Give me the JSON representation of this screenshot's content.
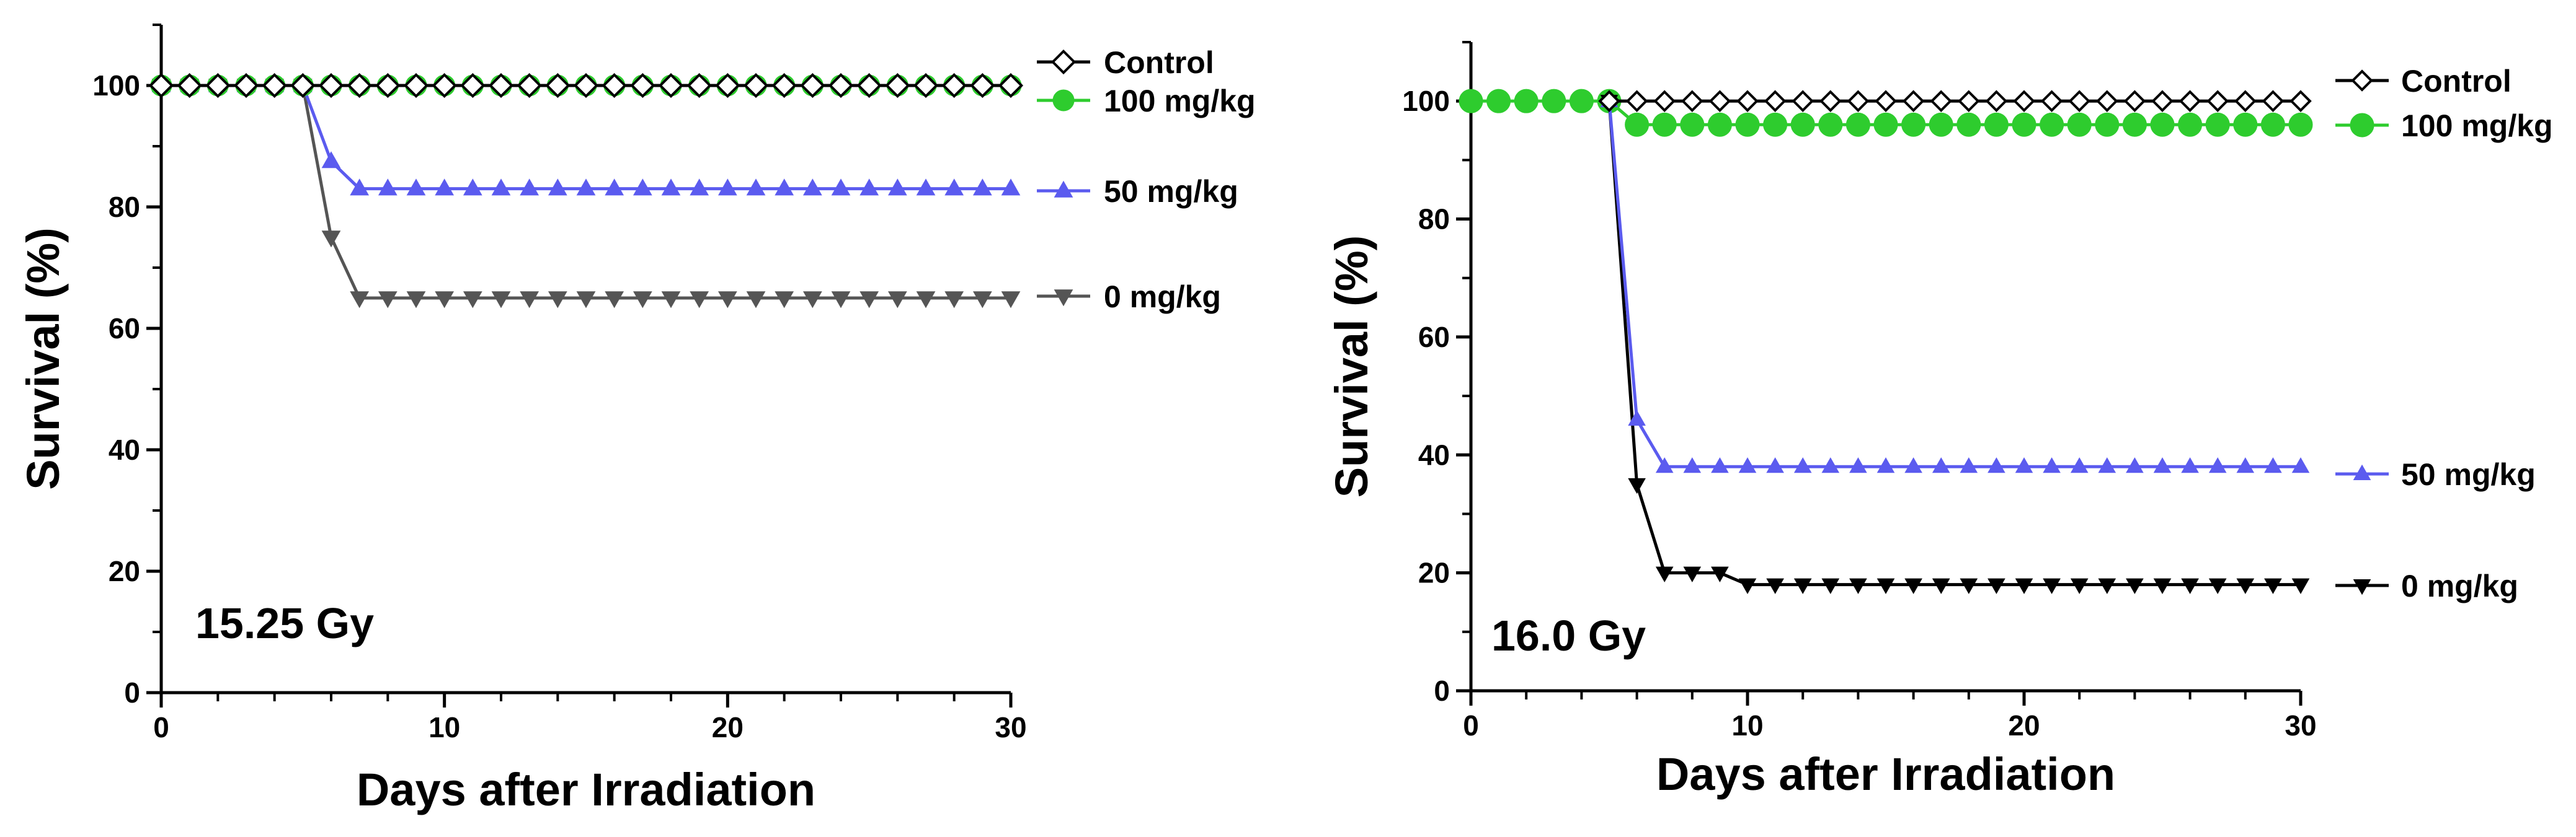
{
  "chart_data": [
    {
      "type": "line",
      "xlabel": "Days after Irradiation",
      "ylabel": "Survival (%)",
      "xlim": [
        0,
        30
      ],
      "ylim": [
        0,
        110
      ],
      "xticks": [
        0,
        10,
        20,
        30
      ],
      "yticks": [
        0,
        20,
        40,
        60,
        80,
        100
      ],
      "annotation": "15.25 Gy",
      "grid": false,
      "legend_position": "right",
      "series": [
        {
          "name": "Control",
          "marker": "diamond-open",
          "color": "#000000",
          "x": [
            0,
            1,
            2,
            3,
            4,
            5,
            6,
            7,
            8,
            9,
            10,
            11,
            12,
            13,
            14,
            15,
            16,
            17,
            18,
            19,
            20,
            21,
            22,
            23,
            24,
            25,
            26,
            27,
            28,
            29,
            30
          ],
          "y": [
            100,
            100,
            100,
            100,
            100,
            100,
            100,
            100,
            100,
            100,
            100,
            100,
            100,
            100,
            100,
            100,
            100,
            100,
            100,
            100,
            100,
            100,
            100,
            100,
            100,
            100,
            100,
            100,
            100,
            100,
            100
          ]
        },
        {
          "name": "100 mg/kg",
          "marker": "circle",
          "color": "#2ecc2e",
          "x": [
            0,
            1,
            2,
            3,
            4,
            5,
            6,
            7,
            8,
            9,
            10,
            11,
            12,
            13,
            14,
            15,
            16,
            17,
            18,
            19,
            20,
            21,
            22,
            23,
            24,
            25,
            26,
            27,
            28,
            29,
            30
          ],
          "y": [
            100,
            100,
            100,
            100,
            100,
            100,
            100,
            100,
            100,
            100,
            100,
            100,
            100,
            100,
            100,
            100,
            100,
            100,
            100,
            100,
            100,
            100,
            100,
            100,
            100,
            100,
            100,
            100,
            100,
            100,
            100
          ]
        },
        {
          "name": "50 mg/kg",
          "marker": "triangle-up",
          "color": "#5b5bef",
          "x": [
            0,
            1,
            2,
            3,
            4,
            5,
            6,
            7,
            8,
            9,
            10,
            11,
            12,
            13,
            14,
            15,
            16,
            17,
            18,
            19,
            20,
            21,
            22,
            23,
            24,
            25,
            26,
            27,
            28,
            29,
            30
          ],
          "y": [
            100,
            100,
            100,
            100,
            100,
            100,
            87.5,
            83,
            83,
            83,
            83,
            83,
            83,
            83,
            83,
            83,
            83,
            83,
            83,
            83,
            83,
            83,
            83,
            83,
            83,
            83,
            83,
            83,
            83,
            83,
            83
          ]
        },
        {
          "name": "0 mg/kg",
          "marker": "triangle-down",
          "color": "#555555",
          "x": [
            0,
            1,
            2,
            3,
            4,
            5,
            6,
            7,
            8,
            9,
            10,
            11,
            12,
            13,
            14,
            15,
            16,
            17,
            18,
            19,
            20,
            21,
            22,
            23,
            24,
            25,
            26,
            27,
            28,
            29,
            30
          ],
          "y": [
            100,
            100,
            100,
            100,
            100,
            100,
            75,
            65,
            65,
            65,
            65,
            65,
            65,
            65,
            65,
            65,
            65,
            65,
            65,
            65,
            65,
            65,
            65,
            65,
            65,
            65,
            65,
            65,
            65,
            65,
            65
          ]
        }
      ]
    },
    {
      "type": "line",
      "xlabel": "Days after Irradiation",
      "ylabel": "Survival (%)",
      "xlim": [
        0,
        30
      ],
      "ylim": [
        0,
        110
      ],
      "xticks": [
        0,
        10,
        20,
        30
      ],
      "yticks": [
        0,
        20,
        40,
        60,
        80,
        100
      ],
      "annotation": "16.0 Gy",
      "grid": false,
      "legend_position": "right",
      "series": [
        {
          "name": "Control",
          "marker": "diamond-open",
          "color": "#000000",
          "x": [
            5,
            6,
            7,
            8,
            9,
            10,
            11,
            12,
            13,
            14,
            15,
            16,
            17,
            18,
            19,
            20,
            21,
            22,
            23,
            24,
            25,
            26,
            27,
            28,
            29,
            30
          ],
          "y": [
            100,
            100,
            100,
            100,
            100,
            100,
            100,
            100,
            100,
            100,
            100,
            100,
            100,
            100,
            100,
            100,
            100,
            100,
            100,
            100,
            100,
            100,
            100,
            100,
            100,
            100
          ]
        },
        {
          "name": "100 mg/kg",
          "marker": "circle",
          "color": "#2ecc2e",
          "x": [
            0,
            1,
            2,
            3,
            4,
            5,
            6,
            7,
            8,
            9,
            10,
            11,
            12,
            13,
            14,
            15,
            16,
            17,
            18,
            19,
            20,
            21,
            22,
            23,
            24,
            25,
            26,
            27,
            28,
            29,
            30
          ],
          "y": [
            100,
            100,
            100,
            100,
            100,
            100,
            96,
            96,
            96,
            96,
            96,
            96,
            96,
            96,
            96,
            96,
            96,
            96,
            96,
            96,
            96,
            96,
            96,
            96,
            96,
            96,
            96,
            96,
            96,
            96,
            96
          ]
        },
        {
          "name": "50 mg/kg",
          "marker": "triangle-up",
          "color": "#5b5bef",
          "x": [
            5,
            6,
            7,
            8,
            9,
            10,
            11,
            12,
            13,
            14,
            15,
            16,
            17,
            18,
            19,
            20,
            21,
            22,
            23,
            24,
            25,
            26,
            27,
            28,
            29,
            30
          ],
          "y": [
            100,
            46,
            38,
            38,
            38,
            38,
            38,
            38,
            38,
            38,
            38,
            38,
            38,
            38,
            38,
            38,
            38,
            38,
            38,
            38,
            38,
            38,
            38,
            38,
            38,
            38
          ]
        },
        {
          "name": "0 mg/kg",
          "marker": "triangle-down",
          "color": "#000000",
          "x": [
            5,
            6,
            7,
            8,
            9,
            10,
            11,
            12,
            13,
            14,
            15,
            16,
            17,
            18,
            19,
            20,
            21,
            22,
            23,
            24,
            25,
            26,
            27,
            28,
            29,
            30
          ],
          "y": [
            100,
            35,
            20,
            20,
            20,
            18,
            18,
            18,
            18,
            18,
            18,
            18,
            18,
            18,
            18,
            18,
            18,
            18,
            18,
            18,
            18,
            18,
            18,
            18,
            18,
            18
          ]
        }
      ]
    }
  ]
}
